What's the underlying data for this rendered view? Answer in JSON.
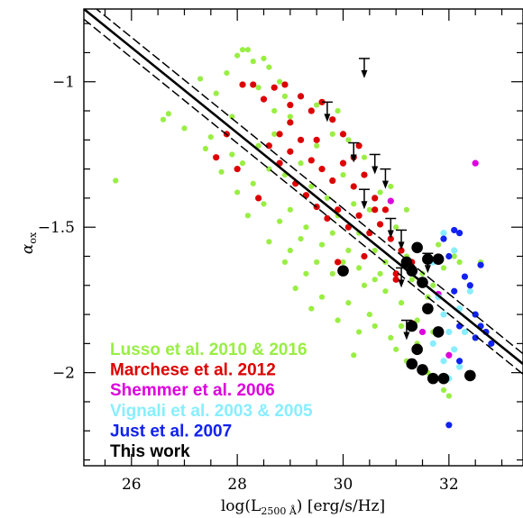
{
  "chart_data": {
    "type": "scatter",
    "xlabel": "log(L2500 Å) [erg/s/Hz]",
    "xlabel_main": "log(L",
    "xlabel_sub": "2500 Å",
    "xlabel_tail": ") [erg/s/Hz]",
    "ylabel": "αox",
    "ylabel_main": "α",
    "ylabel_sub": "ox",
    "xlim": [
      25.1,
      33.4
    ],
    "ylim": [
      -2.32,
      -0.75
    ],
    "x_ticks": [
      26,
      28,
      30,
      32
    ],
    "y_ticks": [
      -1,
      -1.5,
      -2
    ],
    "x_tick_labels": [
      "26",
      "28",
      "30",
      "32"
    ],
    "y_tick_labels": [
      "−1",
      "−1.5",
      "−2"
    ],
    "legend_position": "bottom-left",
    "fit_line": {
      "style": "solid",
      "color": "#000000",
      "points": [
        [
          25.1,
          -0.75
        ],
        [
          33.4,
          -1.97
        ]
      ]
    },
    "fit_band": {
      "style": "dashed",
      "color": "#000000",
      "half_width": 0.035
    },
    "series": [
      {
        "name": "Lusso et al. 2010 & 2016",
        "color": "#99ee44",
        "marker": "small-dot",
        "points": [
          [
            25.7,
            -1.34
          ],
          [
            26.6,
            -1.13
          ],
          [
            26.7,
            -1.11
          ],
          [
            27.0,
            -1.16
          ],
          [
            27.3,
            -0.99
          ],
          [
            27.4,
            -1.23
          ],
          [
            27.6,
            -1.04
          ],
          [
            27.8,
            -0.97
          ],
          [
            28.0,
            -0.91
          ],
          [
            28.1,
            -0.89
          ],
          [
            28.2,
            -0.89
          ],
          [
            28.3,
            -0.93
          ],
          [
            28.5,
            -0.92
          ],
          [
            28.6,
            -0.95
          ],
          [
            28.4,
            -1.02
          ],
          [
            28.8,
            -1.0
          ],
          [
            28.9,
            -1.05
          ],
          [
            28.7,
            -1.1
          ],
          [
            27.9,
            -1.12
          ],
          [
            27.5,
            -1.19
          ],
          [
            27.9,
            -1.25
          ],
          [
            28.1,
            -1.28
          ],
          [
            27.7,
            -1.31
          ],
          [
            28.3,
            -1.35
          ],
          [
            28.0,
            -1.38
          ],
          [
            28.5,
            -1.42
          ],
          [
            28.2,
            -1.46
          ],
          [
            28.8,
            -1.48
          ],
          [
            28.6,
            -1.55
          ],
          [
            29.0,
            -1.58
          ],
          [
            28.9,
            -1.62
          ],
          [
            29.3,
            -1.66
          ],
          [
            29.1,
            -1.71
          ],
          [
            29.6,
            -1.74
          ],
          [
            29.4,
            -1.78
          ],
          [
            29.9,
            -1.82
          ],
          [
            30.1,
            -1.76
          ],
          [
            30.3,
            -1.86
          ],
          [
            30.6,
            -1.84
          ],
          [
            30.9,
            -1.88
          ],
          [
            31.0,
            -1.92
          ],
          [
            30.2,
            -1.94
          ],
          [
            30.5,
            -1.8
          ],
          [
            30.8,
            -1.72
          ],
          [
            30.4,
            -1.7
          ],
          [
            29.8,
            -1.66
          ],
          [
            30.0,
            -1.62
          ],
          [
            30.7,
            -1.66
          ],
          [
            31.1,
            -1.76
          ],
          [
            31.4,
            -1.82
          ],
          [
            30.6,
            -1.58
          ],
          [
            30.3,
            -1.52
          ],
          [
            30.9,
            -1.54
          ],
          [
            31.2,
            -1.6
          ],
          [
            31.5,
            -1.66
          ],
          [
            31.7,
            -1.7
          ],
          [
            31.9,
            -1.64
          ],
          [
            32.2,
            -1.62
          ],
          [
            32.6,
            -1.62
          ],
          [
            31.8,
            -1.56
          ],
          [
            32.1,
            -1.6
          ],
          [
            29.2,
            -1.28
          ],
          [
            29.5,
            -1.22
          ],
          [
            29.8,
            -1.18
          ],
          [
            30.1,
            -1.2
          ],
          [
            29.4,
            -1.36
          ],
          [
            29.7,
            -1.4
          ],
          [
            29.0,
            -1.44
          ],
          [
            29.3,
            -1.5
          ],
          [
            29.9,
            -1.46
          ],
          [
            30.2,
            -1.42
          ],
          [
            30.5,
            -1.44
          ],
          [
            30.7,
            -1.38
          ],
          [
            30.0,
            -1.32
          ],
          [
            30.4,
            -1.26
          ],
          [
            28.7,
            -1.18
          ],
          [
            29.0,
            -1.12
          ],
          [
            28.4,
            -1.22
          ],
          [
            28.9,
            -1.32
          ],
          [
            29.6,
            -1.56
          ],
          [
            30.1,
            -1.58
          ],
          [
            30.8,
            -1.62
          ],
          [
            31.3,
            -1.68
          ],
          [
            31.6,
            -1.74
          ],
          [
            29.5,
            -1.62
          ],
          [
            30.6,
            -1.68
          ],
          [
            29.2,
            -1.54
          ],
          [
            28.6,
            -1.3
          ],
          [
            29.8,
            -1.52
          ],
          [
            30.3,
            -1.64
          ],
          [
            31.0,
            -1.5
          ],
          [
            31.2,
            -1.44
          ],
          [
            30.9,
            -1.36
          ],
          [
            29.5,
            -1.08
          ],
          [
            29.9,
            -1.1
          ],
          [
            31.1,
            -1.84
          ],
          [
            31.4,
            -1.9
          ],
          [
            31.7,
            -1.86
          ],
          [
            31.9,
            -2.06
          ],
          [
            32.0,
            -2.08
          ],
          [
            31.6,
            -2.0
          ],
          [
            31.2,
            -1.96
          ]
        ]
      },
      {
        "name": "Marchese et al. 2012",
        "color": "#dd0000",
        "marker": "dot",
        "points": [
          [
            28.1,
            -1.01
          ],
          [
            28.3,
            -1.01
          ],
          [
            28.5,
            -1.06
          ],
          [
            28.7,
            -1.02
          ],
          [
            28.9,
            -1.01
          ],
          [
            29.0,
            -1.08
          ],
          [
            29.2,
            -1.05
          ],
          [
            29.4,
            -1.1
          ],
          [
            29.6,
            -1.07
          ],
          [
            29.8,
            -1.13
          ],
          [
            30.0,
            -1.18
          ],
          [
            30.3,
            -1.22
          ],
          [
            28.6,
            -1.22
          ],
          [
            28.8,
            -1.18
          ],
          [
            29.0,
            -1.24
          ],
          [
            29.2,
            -1.2
          ],
          [
            29.4,
            -1.27
          ],
          [
            29.6,
            -1.3
          ],
          [
            29.8,
            -1.34
          ],
          [
            30.0,
            -1.28
          ],
          [
            30.2,
            -1.36
          ],
          [
            30.4,
            -1.32
          ],
          [
            30.6,
            -1.4
          ],
          [
            30.8,
            -1.44
          ],
          [
            29.1,
            -1.35
          ],
          [
            29.3,
            -1.39
          ],
          [
            29.5,
            -1.43
          ],
          [
            29.7,
            -1.47
          ],
          [
            29.9,
            -1.44
          ],
          [
            30.1,
            -1.5
          ],
          [
            30.3,
            -1.46
          ],
          [
            30.5,
            -1.52
          ],
          [
            30.7,
            -1.49
          ],
          [
            30.9,
            -1.54
          ],
          [
            31.1,
            -1.58
          ],
          [
            31.3,
            -1.62
          ],
          [
            28.0,
            -1.3
          ],
          [
            27.8,
            -1.18
          ],
          [
            27.6,
            -1.26
          ],
          [
            28.4,
            -1.4
          ],
          [
            31.0,
            -1.66
          ],
          [
            29.9,
            -1.62
          ],
          [
            30.4,
            -1.6
          ],
          [
            30.6,
            -1.44
          ],
          [
            30.2,
            -1.26
          ],
          [
            29.0,
            -1.14
          ],
          [
            28.8,
            -1.28
          ],
          [
            29.5,
            -1.2
          ],
          [
            31.3,
            -1.83
          ],
          [
            31.0,
            -1.68
          ]
        ]
      },
      {
        "name": "Shemmer et al. 2006",
        "color": "#dd00dd",
        "marker": "dot",
        "points": [
          [
            30.9,
            -1.41
          ],
          [
            31.8,
            -1.73
          ],
          [
            32.0,
            -1.94
          ],
          [
            32.5,
            -1.28
          ],
          [
            31.5,
            -1.86
          ]
        ]
      },
      {
        "name": "Vignali et al. 2003 & 2005",
        "color": "#88eeff",
        "marker": "dot",
        "points": [
          [
            31.8,
            -1.74
          ],
          [
            31.9,
            -1.8
          ],
          [
            32.0,
            -1.86
          ],
          [
            32.1,
            -1.92
          ],
          [
            31.9,
            -1.96
          ],
          [
            32.2,
            -1.78
          ],
          [
            32.3,
            -1.86
          ],
          [
            32.4,
            -1.72
          ],
          [
            32.5,
            -1.8
          ],
          [
            31.7,
            -1.62
          ],
          [
            31.9,
            -1.52
          ],
          [
            32.1,
            -1.58
          ],
          [
            32.0,
            -2.02
          ],
          [
            32.2,
            -1.98
          ],
          [
            31.7,
            -1.9
          ]
        ]
      },
      {
        "name": "Just et al. 2007",
        "color": "#1122ee",
        "marker": "dot",
        "points": [
          [
            32.1,
            -1.51
          ],
          [
            32.2,
            -1.52
          ],
          [
            31.9,
            -1.54
          ],
          [
            32.0,
            -1.6
          ],
          [
            32.3,
            -1.67
          ],
          [
            32.4,
            -1.7
          ],
          [
            32.1,
            -1.72
          ],
          [
            32.5,
            -1.8
          ],
          [
            32.6,
            -1.84
          ],
          [
            32.7,
            -1.86
          ],
          [
            32.2,
            -1.84
          ],
          [
            32.5,
            -1.88
          ],
          [
            32.8,
            -1.9
          ],
          [
            32.0,
            -2.18
          ],
          [
            32.2,
            -1.96
          ],
          [
            32.6,
            -1.63
          ]
        ]
      },
      {
        "name": "This work",
        "color": "#000000",
        "marker": "big-dot",
        "points": [
          [
            30.0,
            -1.65
          ],
          [
            31.2,
            -1.62
          ],
          [
            31.4,
            -1.57
          ],
          [
            31.6,
            -1.61
          ],
          [
            31.8,
            -1.61
          ],
          [
            31.3,
            -1.65
          ],
          [
            31.5,
            -1.69
          ],
          [
            31.3,
            -1.84
          ],
          [
            31.6,
            -1.78
          ],
          [
            31.4,
            -1.92
          ],
          [
            31.3,
            -1.97
          ],
          [
            31.8,
            -1.86
          ],
          [
            31.5,
            -1.99
          ],
          [
            31.7,
            -2.02
          ],
          [
            31.9,
            -2.02
          ],
          [
            32.4,
            -2.01
          ]
        ]
      }
    ],
    "upper_limits": {
      "color": "#000000",
      "marker": "arrow-down",
      "points": [
        [
          30.4,
          -0.92
        ],
        [
          29.7,
          -1.07
        ],
        [
          30.2,
          -1.21
        ],
        [
          30.6,
          -1.25
        ],
        [
          30.8,
          -1.3
        ],
        [
          30.4,
          -1.37
        ],
        [
          30.9,
          -1.47
        ],
        [
          31.1,
          -1.51
        ],
        [
          31.6,
          -1.59
        ],
        [
          31.1,
          -1.64
        ],
        [
          31.2,
          -1.82
        ]
      ]
    }
  }
}
